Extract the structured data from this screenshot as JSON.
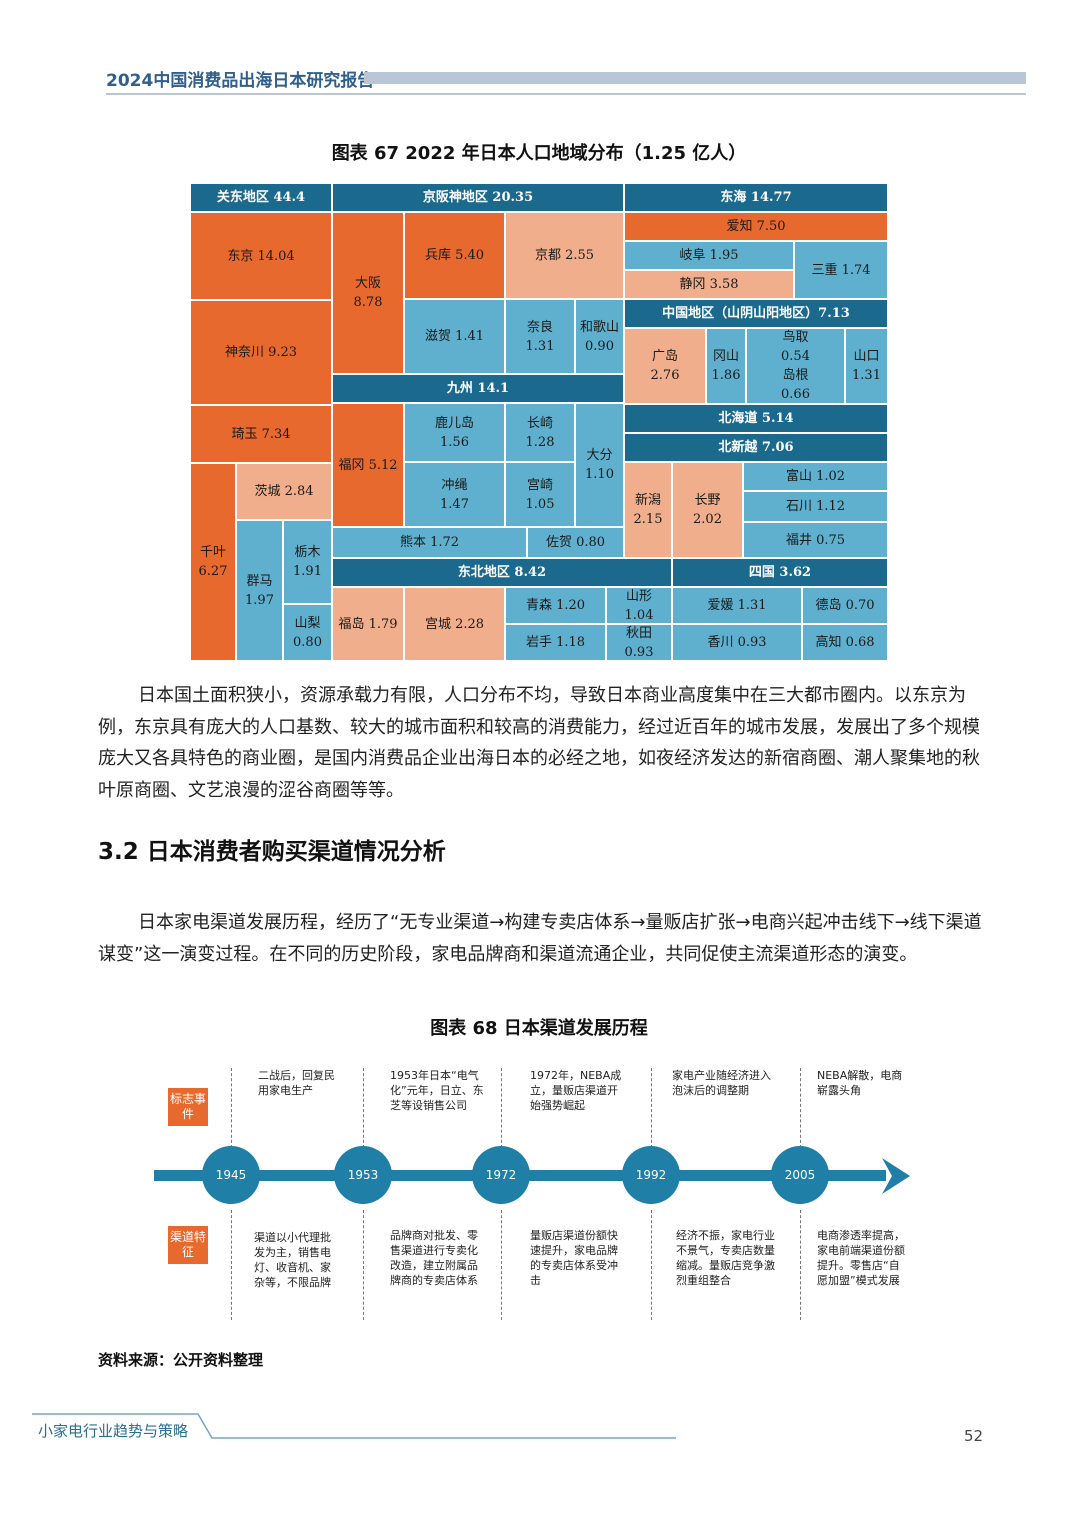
{
  "header": {
    "title": "2024中国消费品出海日本研究报告"
  },
  "figure67": {
    "title": "图表 67 2022 年日本人口地域分布（1.25 亿人）",
    "cells": {
      "kanto": "关东地区 44.4",
      "keihanshin": "京阪神地区 20.35",
      "tokai": "东海 14.77",
      "tokyo": "东京 14.04",
      "osaka_name": "大阪",
      "osaka_val": "8.78",
      "hyogo": "兵库 5.40",
      "kyoto": "京都 2.55",
      "aichi": "爱知 7.50",
      "gifu": "岐阜 1.95",
      "mie": "三重 1.74",
      "shizuoka": "静冈 3.58",
      "kanagawa": "神奈川 9.23",
      "shiga": "滋贺 1.41",
      "nara_name": "奈良",
      "nara_val": "1.31",
      "wakayama_name": "和歌山",
      "wakayama_val": "0.90",
      "chugoku": "中国地区（山阴山阳地区）7.13",
      "hiroshima_name": "广岛",
      "hiroshima_val": "2.76",
      "okayama_name": "冈山",
      "okayama_val": "1.86",
      "tottori_name": "鸟取",
      "tottori_val": "0.54",
      "shimane_name": "岛根",
      "shimane_val": "0.66",
      "yamaguchi_name": "山口",
      "yamaguchi_val": "1.31",
      "kyushu": "九州 14.1",
      "saitama": "琦玉 7.34",
      "fukuoka": "福冈 5.12",
      "kagoshima_name": "鹿儿岛",
      "kagoshima_val": "1.56",
      "nagasaki_name": "长崎",
      "nagasaki_val": "1.28",
      "oita_name": "大分",
      "oita_val": "1.10",
      "hokkaido": "北海道 5.14",
      "hokushinetsu": "北新越 7.06",
      "okinawa_name": "冲绳",
      "okinawa_val": "1.47",
      "miyazaki_name": "宫崎",
      "miyazaki_val": "1.05",
      "niigata_name": "新潟",
      "niigata_val": "2.15",
      "nagano_name": "长野",
      "nagano_val": "2.02",
      "toyama": "富山 1.02",
      "ibaraki": "茨城 2.84",
      "ishikawa": "石川 1.12",
      "chiba_name": "千叶",
      "chiba_val": "6.27",
      "kumamoto": "熊本 1.72",
      "saga": "佐贺 0.80",
      "fukui": "福井 0.75",
      "gunma_name": "群马",
      "gunma_val": "1.97",
      "tochigi_name": "栃木",
      "tochigi_val": "1.91",
      "tohoku": "东北地区 8.42",
      "shikoku": "四国 3.62",
      "fukushima": "福岛 1.79",
      "miyagi": "宫城 2.28",
      "aomori": "青森 1.20",
      "yamagata_name": "山形",
      "yamagata_val": "1.04",
      "ehime": "爱媛 1.31",
      "tokushima": "德岛 0.70",
      "yamanashi_name": "山梨",
      "yamanashi_val": "0.80",
      "iwate": "岩手 1.18",
      "akita_name": "秋田",
      "akita_val": "0.93",
      "kagawa": "香川 0.93",
      "kochi": "高知 0.68"
    }
  },
  "paragraph1": "日本国土面积狭小，资源承载力有限，人口分布不均，导致日本商业高度集中在三大都市圈内。以东京为例，东京具有庞大的人口基数、较大的城市面积和较高的消费能力，经过近百年的城市发展，发展出了多个规模庞大又各具特色的商业圈，是国内消费品企业出海日本的必经之地，如夜经济发达的新宿商圈、潮人聚集地的秋叶原商圈、文艺浪漫的涩谷商圈等等。",
  "section": {
    "heading": "3.2 日本消费者购买渠道情况分析"
  },
  "paragraph2": "日本家电渠道发展历程，经历了“无专业渠道→构建专卖店体系→量贩店扩张→电商兴起冲击线下→线下渠道谋变”这一演变过程。在不同的历史阶段，家电品牌商和渠道流通企业，共同促使主流渠道形态的演变。",
  "figure68": {
    "title": "图表 68 日本渠道发展历程",
    "label_events": "标志事件",
    "label_channel": "渠道特征",
    "milestones": [
      {
        "year": "1945",
        "event": "二战后，回复民用家电生产",
        "channel": "渠道以小代理批发为主，销售电灯、收音机、家杂等，不限品牌"
      },
      {
        "year": "1953",
        "event": "1953年日本“电气化”元年，日立、东芝等设销售公司",
        "channel": "品牌商对批发、零售渠道进行专卖化改造，建立附属品牌商的专卖店体系"
      },
      {
        "year": "1972",
        "event": "1972年，NEBA成立，量贩店渠道开始强势崛起",
        "channel": "量贩店渠道份额快速提升，家电品牌的专卖店体系受冲击"
      },
      {
        "year": "1992",
        "event": "家电产业随经济进入泡沫后的调整期",
        "channel": "经济不振，家电行业不景气，专卖店数量缩减。量贩店竞争激烈重组整合"
      },
      {
        "year": "2005",
        "event": "NEBA解散，电商崭露头角",
        "channel": "电商渗透率提高，家电前端渠道份额提升。零售店“自愿加盟”模式发展"
      }
    ]
  },
  "source": "资料来源：公开资料整理",
  "footer": {
    "title": "小家电行业趋势与策略",
    "page": "52"
  }
}
